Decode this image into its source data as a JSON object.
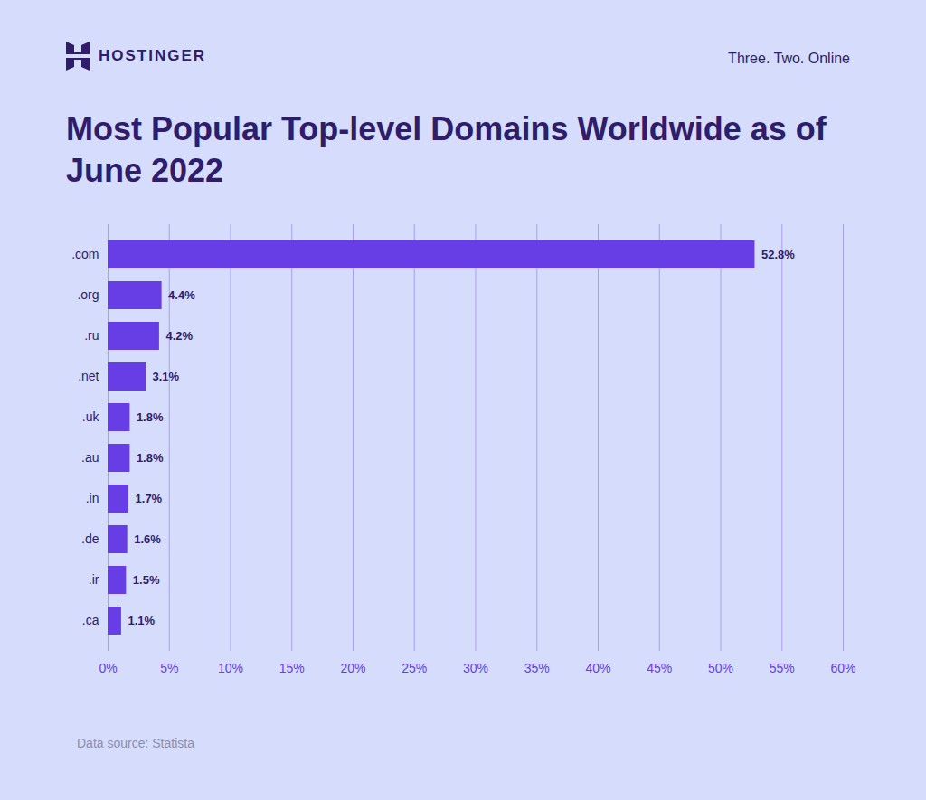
{
  "chart_data": {
    "type": "bar",
    "orientation": "horizontal",
    "logo_text": "HOSTINGER",
    "tagline": "Three. Two. Online",
    "title": "Most Popular Top-level Domains Worldwide as of June 2022",
    "source": "Data source: Statista",
    "categories": [
      ".com",
      ".org",
      ".ru",
      ".net",
      ".uk",
      ".au",
      ".in",
      ".de",
      ".ir",
      ".ca"
    ],
    "values": [
      52.8,
      4.4,
      4.2,
      3.1,
      1.8,
      1.8,
      1.7,
      1.6,
      1.5,
      1.1
    ],
    "value_labels": [
      "52.8%",
      "4.4%",
      "4.2%",
      "3.1%",
      "1.8%",
      "1.8%",
      "1.7%",
      "1.6%",
      "1.5%",
      "1.1%"
    ],
    "data_labels": true,
    "color": "#673de6",
    "xlim": [
      0,
      60
    ],
    "xticks": [
      {
        "value": 0,
        "label": "0%"
      },
      {
        "value": 5,
        "label": "5%"
      },
      {
        "value": 10,
        "label": "10%"
      },
      {
        "value": 15,
        "label": "15%"
      },
      {
        "value": 20,
        "label": "20%"
      },
      {
        "value": 25,
        "label": "25%"
      },
      {
        "value": 30,
        "label": "30%"
      },
      {
        "value": 35,
        "label": "35%"
      },
      {
        "value": 40,
        "label": "40%"
      },
      {
        "value": 45,
        "label": "45%"
      },
      {
        "value": 50,
        "label": "50%"
      },
      {
        "value": 55,
        "label": "55%"
      },
      {
        "value": 60,
        "label": "60%"
      }
    ],
    "grid": true
  }
}
